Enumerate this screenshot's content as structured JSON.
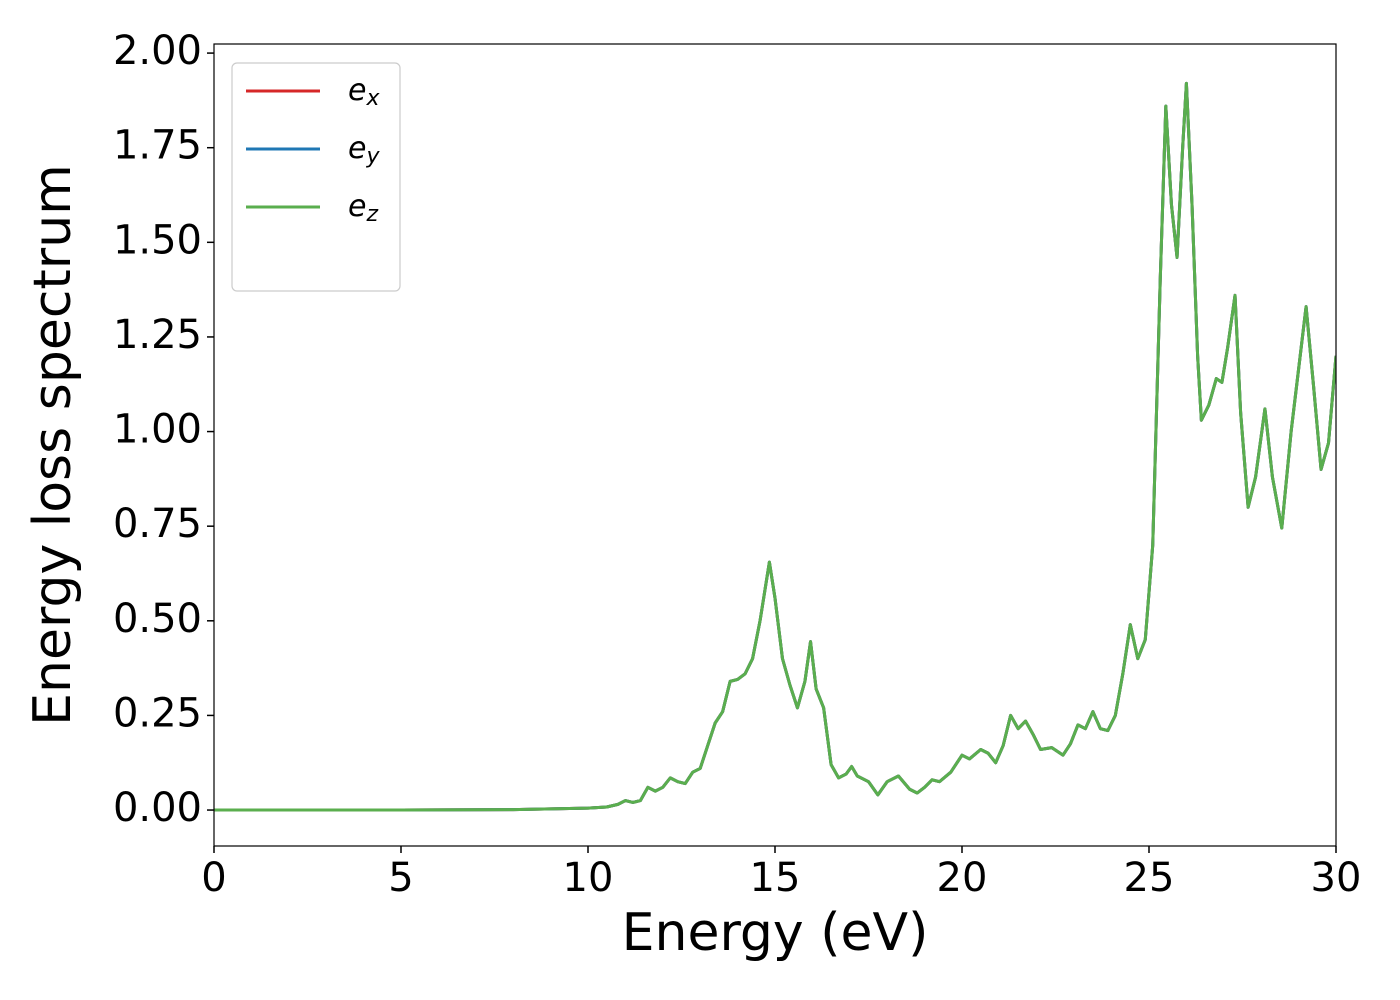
{
  "chart_data": {
    "type": "line",
    "xlabel": "Energy (eV)",
    "ylabel": "Energy loss spectrum",
    "x": [
      0,
      5,
      8,
      10,
      10.5,
      10.8,
      11,
      11.2,
      11.4,
      11.6,
      11.8,
      12,
      12.2,
      12.4,
      12.6,
      12.8,
      13,
      13.2,
      13.4,
      13.6,
      13.8,
      14,
      14.2,
      14.4,
      14.6,
      14.85,
      15,
      15.2,
      15.4,
      15.6,
      15.8,
      15.95,
      16.1,
      16.3,
      16.5,
      16.7,
      16.9,
      17.05,
      17.2,
      17.5,
      17.75,
      18,
      18.3,
      18.6,
      18.8,
      19,
      19.2,
      19.4,
      19.7,
      20,
      20.2,
      20.5,
      20.7,
      20.9,
      21.1,
      21.3,
      21.5,
      21.7,
      21.9,
      22.1,
      22.4,
      22.7,
      22.9,
      23.1,
      23.3,
      23.5,
      23.7,
      23.9,
      24.1,
      24.3,
      24.5,
      24.7,
      24.9,
      25.1,
      25.3,
      25.45,
      25.6,
      25.75,
      25.9,
      26,
      26.15,
      26.3,
      26.4,
      26.6,
      26.8,
      26.95,
      27.1,
      27.3,
      27.45,
      27.65,
      27.85,
      28.1,
      28.3,
      28.55,
      28.8,
      29.2,
      29.4,
      29.6,
      29.8,
      30
    ],
    "series": [
      {
        "name": "e_x",
        "color": "#d62728",
        "values": [
          0,
          0,
          0.001,
          0.005,
          0.008,
          0.015,
          0.025,
          0.02,
          0.025,
          0.06,
          0.05,
          0.06,
          0.085,
          0.075,
          0.07,
          0.1,
          0.11,
          0.17,
          0.23,
          0.26,
          0.34,
          0.345,
          0.36,
          0.4,
          0.5,
          0.655,
          0.56,
          0.4,
          0.33,
          0.27,
          0.34,
          0.445,
          0.32,
          0.27,
          0.12,
          0.085,
          0.095,
          0.115,
          0.09,
          0.075,
          0.04,
          0.075,
          0.09,
          0.055,
          0.045,
          0.06,
          0.08,
          0.075,
          0.1,
          0.145,
          0.135,
          0.16,
          0.15,
          0.125,
          0.17,
          0.25,
          0.215,
          0.235,
          0.2,
          0.16,
          0.165,
          0.145,
          0.175,
          0.225,
          0.215,
          0.26,
          0.215,
          0.21,
          0.25,
          0.36,
          0.49,
          0.4,
          0.45,
          0.7,
          1.4,
          1.86,
          1.6,
          1.46,
          1.75,
          1.92,
          1.6,
          1.2,
          1.03,
          1.07,
          1.14,
          1.13,
          1.22,
          1.36,
          1.05,
          0.8,
          0.88,
          1.06,
          0.88,
          0.745,
          1.0,
          1.33,
          1.12,
          0.9,
          0.97,
          1.2
        ]
      },
      {
        "name": "e_y",
        "color": "#1f77b4",
        "values": [
          0,
          0,
          0.001,
          0.005,
          0.008,
          0.015,
          0.025,
          0.02,
          0.025,
          0.06,
          0.05,
          0.06,
          0.085,
          0.075,
          0.07,
          0.1,
          0.11,
          0.17,
          0.23,
          0.26,
          0.34,
          0.345,
          0.36,
          0.4,
          0.5,
          0.655,
          0.56,
          0.4,
          0.33,
          0.27,
          0.34,
          0.445,
          0.32,
          0.27,
          0.12,
          0.085,
          0.095,
          0.115,
          0.09,
          0.075,
          0.04,
          0.075,
          0.09,
          0.055,
          0.045,
          0.06,
          0.08,
          0.075,
          0.1,
          0.145,
          0.135,
          0.16,
          0.15,
          0.125,
          0.17,
          0.25,
          0.215,
          0.235,
          0.2,
          0.16,
          0.165,
          0.145,
          0.175,
          0.225,
          0.215,
          0.26,
          0.215,
          0.21,
          0.25,
          0.36,
          0.49,
          0.4,
          0.45,
          0.7,
          1.4,
          1.86,
          1.6,
          1.46,
          1.75,
          1.92,
          1.6,
          1.2,
          1.03,
          1.07,
          1.14,
          1.13,
          1.22,
          1.36,
          1.05,
          0.8,
          0.88,
          1.06,
          0.88,
          0.745,
          1.0,
          1.33,
          1.12,
          0.9,
          0.97,
          1.2
        ]
      },
      {
        "name": "e_z",
        "color": "#5aae4e",
        "values": [
          0,
          0,
          0.001,
          0.005,
          0.008,
          0.015,
          0.025,
          0.02,
          0.025,
          0.06,
          0.05,
          0.06,
          0.085,
          0.075,
          0.07,
          0.1,
          0.11,
          0.17,
          0.23,
          0.26,
          0.34,
          0.345,
          0.36,
          0.4,
          0.5,
          0.655,
          0.56,
          0.4,
          0.33,
          0.27,
          0.34,
          0.445,
          0.32,
          0.27,
          0.12,
          0.085,
          0.095,
          0.115,
          0.09,
          0.075,
          0.04,
          0.075,
          0.09,
          0.055,
          0.045,
          0.06,
          0.08,
          0.075,
          0.1,
          0.145,
          0.135,
          0.16,
          0.15,
          0.125,
          0.17,
          0.25,
          0.215,
          0.235,
          0.2,
          0.16,
          0.165,
          0.145,
          0.175,
          0.225,
          0.215,
          0.26,
          0.215,
          0.21,
          0.25,
          0.36,
          0.49,
          0.4,
          0.45,
          0.7,
          1.4,
          1.86,
          1.6,
          1.46,
          1.75,
          1.92,
          1.6,
          1.2,
          1.03,
          1.07,
          1.14,
          1.13,
          1.22,
          1.36,
          1.05,
          0.8,
          0.88,
          1.06,
          0.88,
          0.745,
          1.0,
          1.33,
          1.12,
          0.9,
          0.97,
          1.2
        ]
      }
    ],
    "xlim": [
      0,
      30
    ],
    "xticks": [
      0,
      5,
      10,
      15,
      20,
      25,
      30
    ],
    "ylim": [
      -0.095,
      2.024
    ],
    "yticks": [
      {
        "value": 0,
        "label": "0.00"
      },
      {
        "value": 0.25,
        "label": "0.25"
      },
      {
        "value": 0.5,
        "label": "0.50"
      },
      {
        "value": 0.75,
        "label": "0.75"
      },
      {
        "value": 1,
        "label": "1.00"
      },
      {
        "value": 1.25,
        "label": "1.25"
      },
      {
        "value": 1.5,
        "label": "1.50"
      },
      {
        "value": 1.75,
        "label": "1.75"
      },
      {
        "value": 2,
        "label": "2.00"
      }
    ],
    "grid": false,
    "legend": "upper-left"
  }
}
